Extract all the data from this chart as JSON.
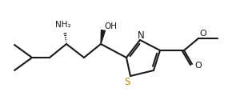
{
  "bg_color": "#ffffff",
  "line_color": "#1a1a1a",
  "S_color": "#b8860b",
  "lw": 1.5,
  "figsize": [
    3.1,
    1.2
  ],
  "dpi": 100,
  "NH2": "NH₂",
  "OH": "OH",
  "N_label": "N",
  "S_label": "S",
  "O_label": "O"
}
